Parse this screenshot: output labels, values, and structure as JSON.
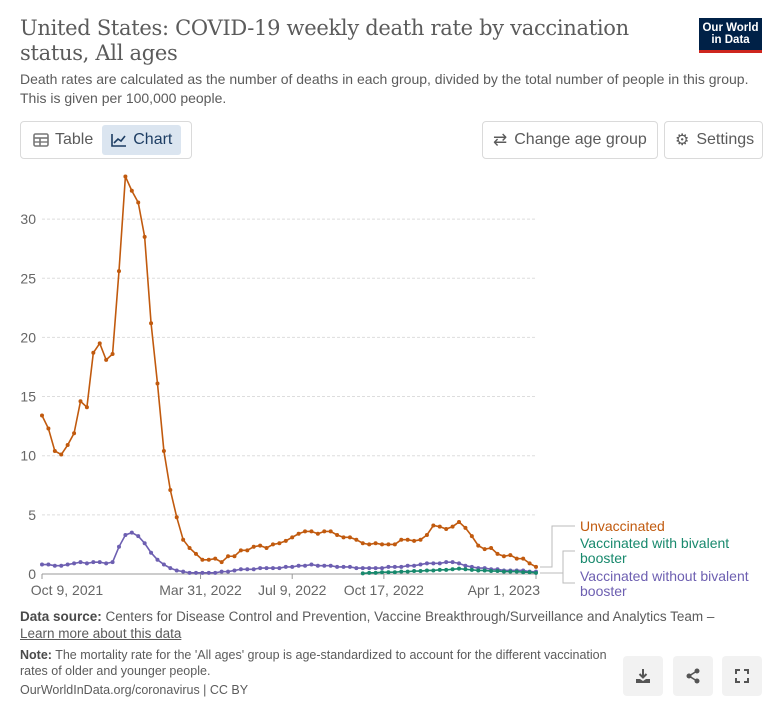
{
  "header": {
    "title": "United States: COVID-19 weekly death rate by vaccination status, All ages",
    "subtitle": "Death rates are calculated as the number of deaths in each group, divided by the total number of people in this group. This is given per 100,000 people.",
    "logo_text": "Our World in Data"
  },
  "controls": {
    "table_label": "Table",
    "chart_label": "Chart",
    "change_age_label": "Change age group",
    "settings_label": "Settings"
  },
  "chart_data": {
    "type": "line",
    "x_unit": "week index (weekly from Oct 9, 2021)",
    "x_start": "Oct 9, 2021",
    "x_end": "Apr 1, 2023",
    "ylim": [
      0,
      33.6
    ],
    "yticks": [
      0,
      5,
      10,
      15,
      20,
      25,
      30
    ],
    "xticks": [
      {
        "label": "Oct 9, 2021",
        "week": 0
      },
      {
        "label": "Mar 31, 2022",
        "week": 24.71
      },
      {
        "label": "Jul 9, 2022",
        "week": 39
      },
      {
        "label": "Oct 17, 2022",
        "week": 53.29
      },
      {
        "label": "Apr 1, 2023",
        "week": 77
      }
    ],
    "grid": true,
    "legend": "right",
    "series": [
      {
        "name": "Unvaccinated",
        "color": "#c15a0e",
        "start": 0,
        "values": [
          13.4,
          12.3,
          10.4,
          10.1,
          10.9,
          11.9,
          14.6,
          14.1,
          18.7,
          19.5,
          18.1,
          18.6,
          25.6,
          33.6,
          32.4,
          31.4,
          28.5,
          21.2,
          16.1,
          10.4,
          7.1,
          4.8,
          2.9,
          2.2,
          1.7,
          1.2,
          1.2,
          1.3,
          1.0,
          1.5,
          1.5,
          2.0,
          2.0,
          2.3,
          2.4,
          2.2,
          2.5,
          2.6,
          2.8,
          3.1,
          3.4,
          3.6,
          3.6,
          3.4,
          3.6,
          3.6,
          3.3,
          3.1,
          3.1,
          2.9,
          2.6,
          2.5,
          2.6,
          2.5,
          2.5,
          2.5,
          2.9,
          2.9,
          2.8,
          2.9,
          3.3,
          4.1,
          4.0,
          3.8,
          4.0,
          4.4,
          3.9,
          3.2,
          2.4,
          2.1,
          2.2,
          1.7,
          1.5,
          1.6,
          1.3,
          1.3,
          0.9,
          0.6
        ]
      },
      {
        "name": "Vaccinated with bivalent booster",
        "color": "#18896d",
        "start": 50,
        "values": [
          0.05,
          0.1,
          0.1,
          0.15,
          0.15,
          0.15,
          0.2,
          0.2,
          0.25,
          0.25,
          0.3,
          0.3,
          0.35,
          0.35,
          0.4,
          0.45,
          0.4,
          0.35,
          0.3,
          0.3,
          0.25,
          0.25,
          0.2,
          0.2,
          0.2,
          0.15,
          0.15,
          0.1
        ]
      },
      {
        "name": "Vaccinated without bivalent booster",
        "color": "#6d5fb1",
        "start": 0,
        "values": [
          0.8,
          0.8,
          0.7,
          0.7,
          0.8,
          0.9,
          1.0,
          0.9,
          1.0,
          1.0,
          0.9,
          1.0,
          2.3,
          3.3,
          3.5,
          3.2,
          2.6,
          1.8,
          1.2,
          0.8,
          0.5,
          0.3,
          0.2,
          0.1,
          0.1,
          0.1,
          0.1,
          0.1,
          0.2,
          0.2,
          0.3,
          0.4,
          0.4,
          0.4,
          0.5,
          0.5,
          0.5,
          0.5,
          0.6,
          0.6,
          0.7,
          0.7,
          0.8,
          0.7,
          0.7,
          0.7,
          0.6,
          0.6,
          0.6,
          0.5,
          0.5,
          0.5,
          0.5,
          0.5,
          0.6,
          0.6,
          0.6,
          0.7,
          0.7,
          0.8,
          0.9,
          0.9,
          0.9,
          1.0,
          1.0,
          0.9,
          0.7,
          0.6,
          0.5,
          0.5,
          0.4,
          0.4,
          0.3,
          0.3,
          0.3,
          0.3,
          0.2,
          0.2
        ]
      }
    ]
  },
  "legend": {
    "unvaccinated": "Unvaccinated",
    "bivalent_1": "Vaccinated with bivalent",
    "bivalent_2": "booster",
    "without_1": "Vaccinated without bivalent",
    "without_2": "booster"
  },
  "footer": {
    "source_label": "Data source:",
    "source_text": "Centers for Disease Control and Prevention, Vaccine Breakthrough/Surveillance and Analytics Team –",
    "learn_more": "Learn more about this data",
    "note_label": "Note:",
    "note_text": "The mortality rate for the 'All ages' group is age-standardized to account for the different vaccination rates of older and younger people.",
    "credit": "OurWorldInData.org/coronavirus | CC BY"
  }
}
